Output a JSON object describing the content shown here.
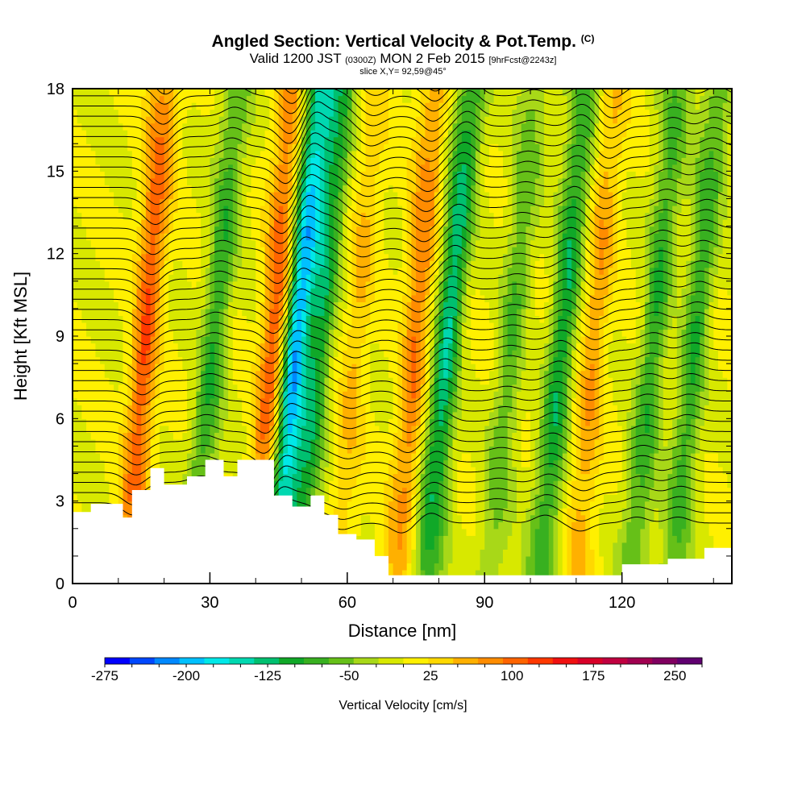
{
  "header": {
    "title": "Angled Section: Vertical Velocity & Pot.Temp.",
    "title_mark": "(C)",
    "subtitle_pre": "Valid 1200 JST",
    "subtitle_utc": "(0300Z)",
    "subtitle_mid": "MON 2 Feb 2015",
    "subtitle_fcst": "[9hrFcst@2243z]",
    "slice": "slice X,Y= 92,59@45°"
  },
  "chart_data": {
    "type": "heatmap",
    "title": "Angled Section: Vertical Velocity & Pot.Temp.",
    "xlabel": "Distance [nm]",
    "ylabel": "Height [Kft MSL]",
    "xlim": [
      0,
      144
    ],
    "ylim": [
      0,
      18
    ],
    "x_ticks": [
      0,
      30,
      60,
      90,
      120
    ],
    "y_ticks": [
      0,
      3,
      6,
      9,
      12,
      15,
      18
    ],
    "colorbar": {
      "label": "Vertical Velocity [cm/s]",
      "min": -275,
      "max": 275,
      "step": 25,
      "tick_values": [
        -275,
        -200,
        -125,
        -50,
        25,
        100,
        175,
        250
      ],
      "tick_labels": [
        "-275",
        "-200",
        "-125",
        "-50",
        "25",
        "100",
        "175",
        "250"
      ],
      "colors": [
        "#0000ff",
        "#0047ff",
        "#0088ff",
        "#00c0ff",
        "#00e8e8",
        "#00d8b0",
        "#00c070",
        "#10a828",
        "#38b020",
        "#66c018",
        "#a8d818",
        "#d8e800",
        "#fff000",
        "#ffd800",
        "#ffb000",
        "#ff8c00",
        "#ff6400",
        "#ff3800",
        "#f01010",
        "#d80028",
        "#c00040",
        "#a00050",
        "#800060",
        "#600070"
      ]
    },
    "velocity_bands": [
      {
        "x": 16,
        "value": 150
      },
      {
        "x": 31,
        "value": -75
      },
      {
        "x": 44,
        "value": 150
      },
      {
        "x": 49,
        "value": -200
      },
      {
        "x": 54,
        "value": -100
      },
      {
        "x": 62,
        "value": 80
      },
      {
        "x": 75,
        "value": 125
      },
      {
        "x": 82,
        "value": -125
      },
      {
        "x": 96,
        "value": -50
      },
      {
        "x": 107,
        "value": -100
      },
      {
        "x": 114,
        "value": 100
      },
      {
        "x": 127,
        "value": -75
      },
      {
        "x": 136,
        "value": -75
      }
    ],
    "terrain": [
      [
        0,
        2.6
      ],
      [
        4,
        2.9
      ],
      [
        9,
        2.9
      ],
      [
        11,
        2.4
      ],
      [
        13,
        3.4
      ],
      [
        17,
        4.2
      ],
      [
        20,
        3.6
      ],
      [
        25,
        3.9
      ],
      [
        29,
        4.5
      ],
      [
        33,
        3.9
      ],
      [
        36,
        4.5
      ],
      [
        40,
        4.5
      ],
      [
        44,
        3.2
      ],
      [
        48,
        2.8
      ],
      [
        52,
        3.2
      ],
      [
        55,
        2.5
      ],
      [
        58,
        1.8
      ],
      [
        62,
        1.6
      ],
      [
        66,
        1.0
      ],
      [
        69,
        0.3
      ],
      [
        85,
        0.3
      ],
      [
        100,
        0.3
      ],
      [
        110,
        0.3
      ],
      [
        120,
        0.7
      ],
      [
        130,
        0.9
      ],
      [
        138,
        1.3
      ],
      [
        144,
        1.3
      ]
    ]
  }
}
